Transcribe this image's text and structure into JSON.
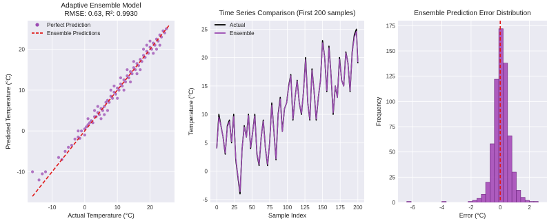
{
  "chart_data": [
    {
      "type": "scatter",
      "title": "Adaptive Ensemble Model",
      "subtitle": "RMSE: 0.63, R²: 0.9930",
      "xlabel": "Actual Temperature (°C)",
      "ylabel": "Predicted Temperature (°C)",
      "xlim": [
        -17.5,
        27.5
      ],
      "ylim": [
        -17.5,
        27
      ],
      "xticks": [
        -10,
        0,
        10,
        20
      ],
      "yticks": [
        -10,
        0,
        10,
        20
      ],
      "legend": {
        "position": "top-left",
        "entries": [
          {
            "label": "Perfect Prediction",
            "color": "#9b4bb2",
            "kind": "marker"
          },
          {
            "label": "Ensemble Predictions",
            "color": "#e01a1a",
            "kind": "dash"
          }
        ]
      },
      "series": [
        {
          "kind": "scatter",
          "color": "#9b4bb2",
          "points": [
            [
              -16,
              -10
            ],
            [
              -13,
              -10.5
            ],
            [
              -12,
              -10
            ],
            [
              -14,
              -12
            ],
            [
              -8,
              -6.5
            ],
            [
              -7,
              -7
            ],
            [
              -6,
              -5
            ],
            [
              -5,
              -4
            ],
            [
              -4,
              -3.5
            ],
            [
              -3,
              -2
            ],
            [
              -2,
              -1.5
            ],
            [
              -1.5,
              -1.8
            ],
            [
              -1,
              0
            ],
            [
              0,
              0.5
            ],
            [
              0.5,
              1
            ],
            [
              1,
              1.5
            ],
            [
              1.5,
              2
            ],
            [
              2,
              2.5
            ],
            [
              2.5,
              2
            ],
            [
              3,
              3.5
            ],
            [
              3.5,
              3.5
            ],
            [
              4,
              4.5
            ],
            [
              4.5,
              4
            ],
            [
              5,
              5.5
            ],
            [
              5.5,
              5
            ],
            [
              6,
              6
            ],
            [
              6.5,
              7
            ],
            [
              7,
              7.5
            ],
            [
              7.5,
              7
            ],
            [
              8,
              8.5
            ],
            [
              8.5,
              8
            ],
            [
              9,
              9.5
            ],
            [
              9.5,
              9
            ],
            [
              10,
              10.5
            ],
            [
              10.5,
              10
            ],
            [
              11,
              11.5
            ],
            [
              11.5,
              11
            ],
            [
              12,
              12.5
            ],
            [
              12.5,
              12
            ],
            [
              13,
              13.5
            ],
            [
              13.5,
              13
            ],
            [
              14,
              14.5
            ],
            [
              14.5,
              14
            ],
            [
              15,
              15.5
            ],
            [
              15.5,
              15
            ],
            [
              16,
              16.5
            ],
            [
              16.5,
              16
            ],
            [
              17,
              17.5
            ],
            [
              17.5,
              17
            ],
            [
              18,
              18.5
            ],
            [
              18.5,
              18
            ],
            [
              19,
              19.5
            ],
            [
              19.5,
              19
            ],
            [
              20,
              20.5
            ],
            [
              20.5,
              20
            ],
            [
              21,
              21.5
            ],
            [
              21.5,
              21
            ],
            [
              22,
              22.5
            ],
            [
              22.5,
              22
            ],
            [
              23,
              23.5
            ],
            [
              23.5,
              23
            ],
            [
              24,
              24.5
            ],
            [
              24.5,
              24
            ],
            [
              25,
              25
            ],
            [
              3,
              5
            ],
            [
              6,
              4
            ],
            [
              9,
              11
            ],
            [
              12,
              10
            ],
            [
              15,
              17
            ],
            [
              17,
              15
            ],
            [
              20,
              22
            ],
            [
              22,
              20
            ],
            [
              1,
              3
            ],
            [
              5,
              3
            ],
            [
              8,
              10
            ],
            [
              10,
              8
            ],
            [
              13,
              15
            ],
            [
              16,
              14
            ],
            [
              19,
              21
            ],
            [
              21,
              19
            ],
            [
              -2,
              0
            ],
            [
              0,
              -1
            ],
            [
              4,
              6
            ],
            [
              7,
              5
            ],
            [
              11,
              13
            ],
            [
              14,
              12
            ],
            [
              18,
              20
            ],
            [
              23,
              21
            ]
          ]
        },
        {
          "kind": "line",
          "color": "#e01a1a",
          "dashed": true,
          "points": [
            [
              -16,
              -16
            ],
            [
              26,
              26
            ]
          ]
        }
      ]
    },
    {
      "type": "line",
      "title": "Time Series Comparison (First 200 samples)",
      "xlabel": "Sample Index",
      "ylabel": "Temperature (°C)",
      "xlim": [
        -9,
        209
      ],
      "ylim": [
        -5.5,
        26.5
      ],
      "xticks": [
        0,
        25,
        50,
        75,
        100,
        125,
        150,
        175,
        200
      ],
      "yticks": [
        -5,
        0,
        5,
        10,
        15,
        20,
        25
      ],
      "legend": {
        "position": "top-left",
        "entries": [
          {
            "label": "Actual",
            "color": "#000000",
            "kind": "line"
          },
          {
            "label": "Ensemble",
            "color": "#9b4bb2",
            "kind": "line"
          }
        ]
      },
      "series": [
        {
          "name": "Actual",
          "color": "#000000",
          "points": [
            [
              0,
              4
            ],
            [
              3,
              10
            ],
            [
              6,
              8
            ],
            [
              9,
              6
            ],
            [
              12,
              3
            ],
            [
              15,
              8
            ],
            [
              18,
              9
            ],
            [
              21,
              5
            ],
            [
              24,
              10
            ],
            [
              27,
              2
            ],
            [
              30,
              -1
            ],
            [
              33,
              -4
            ],
            [
              36,
              4
            ],
            [
              39,
              8
            ],
            [
              42,
              6
            ],
            [
              45,
              10
            ],
            [
              48,
              4
            ],
            [
              51,
              7
            ],
            [
              54,
              10
            ],
            [
              57,
              3
            ],
            [
              60,
              1
            ],
            [
              63,
              6
            ],
            [
              66,
              9
            ],
            [
              69,
              4
            ],
            [
              72,
              1
            ],
            [
              75,
              5
            ],
            [
              78,
              12
            ],
            [
              81,
              7
            ],
            [
              84,
              2
            ],
            [
              87,
              10
            ],
            [
              90,
              13
            ],
            [
              93,
              7
            ],
            [
              96,
              11
            ],
            [
              99,
              12
            ],
            [
              102,
              15
            ],
            [
              105,
              17
            ],
            [
              108,
              9
            ],
            [
              111,
              13
            ],
            [
              114,
              16
            ],
            [
              117,
              12
            ],
            [
              120,
              10
            ],
            [
              123,
              14
            ],
            [
              126,
              20
            ],
            [
              129,
              12
            ],
            [
              132,
              9
            ],
            [
              135,
              18
            ],
            [
              138,
              14
            ],
            [
              141,
              9
            ],
            [
              144,
              13
            ],
            [
              147,
              16
            ],
            [
              150,
              23
            ],
            [
              153,
              20
            ],
            [
              156,
              14
            ],
            [
              159,
              22
            ],
            [
              162,
              17
            ],
            [
              165,
              10
            ],
            [
              168,
              15
            ],
            [
              171,
              13
            ],
            [
              174,
              20
            ],
            [
              177,
              16
            ],
            [
              180,
              15
            ],
            [
              183,
              21
            ],
            [
              186,
              19
            ],
            [
              189,
              14
            ],
            [
              192,
              21
            ],
            [
              195,
              24
            ],
            [
              198,
              25
            ],
            [
              200,
              19
            ]
          ]
        },
        {
          "name": "Ensemble",
          "color": "#9b4bb2",
          "points": [
            [
              0,
              4
            ],
            [
              3,
              9.5
            ],
            [
              6,
              8
            ],
            [
              9,
              6
            ],
            [
              12,
              3.2
            ],
            [
              15,
              7.8
            ],
            [
              18,
              8.7
            ],
            [
              21,
              5.2
            ],
            [
              24,
              9.6
            ],
            [
              27,
              2.3
            ],
            [
              30,
              -0.8
            ],
            [
              33,
              -3.6
            ],
            [
              36,
              4
            ],
            [
              39,
              7.8
            ],
            [
              42,
              6
            ],
            [
              45,
              9.8
            ],
            [
              48,
              4.2
            ],
            [
              51,
              7
            ],
            [
              54,
              9.7
            ],
            [
              57,
              3.2
            ],
            [
              60,
              1.2
            ],
            [
              63,
              6
            ],
            [
              66,
              8.8
            ],
            [
              69,
              4
            ],
            [
              72,
              1.2
            ],
            [
              75,
              5
            ],
            [
              78,
              11.6
            ],
            [
              81,
              7
            ],
            [
              84,
              2.2
            ],
            [
              87,
              9.8
            ],
            [
              90,
              12.7
            ],
            [
              93,
              7
            ],
            [
              96,
              11
            ],
            [
              99,
              12
            ],
            [
              102,
              14.8
            ],
            [
              105,
              16.8
            ],
            [
              108,
              9.2
            ],
            [
              111,
              13
            ],
            [
              114,
              15.8
            ],
            [
              117,
              12
            ],
            [
              120,
              10.2
            ],
            [
              123,
              14
            ],
            [
              126,
              19.6
            ],
            [
              129,
              12
            ],
            [
              132,
              9.2
            ],
            [
              135,
              17.7
            ],
            [
              138,
              14
            ],
            [
              141,
              9.2
            ],
            [
              144,
              13
            ],
            [
              147,
              16
            ],
            [
              150,
              22.6
            ],
            [
              153,
              20
            ],
            [
              156,
              14.2
            ],
            [
              159,
              21.7
            ],
            [
              162,
              17
            ],
            [
              165,
              10.3
            ],
            [
              168,
              15
            ],
            [
              171,
              13
            ],
            [
              174,
              19.7
            ],
            [
              177,
              16
            ],
            [
              180,
              15
            ],
            [
              183,
              20.8
            ],
            [
              186,
              19
            ],
            [
              189,
              14.2
            ],
            [
              192,
              20.8
            ],
            [
              195,
              23.6
            ],
            [
              198,
              24.6
            ],
            [
              200,
              19.2
            ]
          ]
        }
      ]
    },
    {
      "type": "bar",
      "title": "Ensemble Prediction Error Distribution",
      "xlabel": "Error (°C)",
      "ylabel": "Frequency",
      "xlim": [
        -7,
        3.2
      ],
      "ylim": [
        0,
        180
      ],
      "xticks": [
        -6,
        -4,
        -2,
        0,
        2
      ],
      "yticks": [
        0,
        25,
        50,
        75,
        100,
        125,
        150,
        175
      ],
      "bin_edges": [
        -6.4,
        -6.1,
        -5.8,
        -5.5,
        -5.2,
        -4.9,
        -4.6,
        -4.3,
        -4.0,
        -3.7,
        -3.4,
        -3.1,
        -2.8,
        -2.5,
        -2.2,
        -1.9,
        -1.6,
        -1.3,
        -1.0,
        -0.7,
        -0.4,
        -0.1,
        0.2,
        0.5,
        0.8,
        1.1,
        1.4,
        1.7,
        2.0,
        2.3,
        2.6
      ],
      "counts": [
        1,
        0,
        0,
        0,
        0,
        0,
        0,
        0,
        1,
        0,
        0,
        0,
        0,
        0,
        1,
        2,
        4,
        8,
        20,
        58,
        122,
        172,
        138,
        66,
        30,
        12,
        5,
        2,
        1,
        1
      ],
      "bar_color": "#a64bb8",
      "bar_edge": "#6e2a80",
      "vline": {
        "x": 0,
        "color": "#e01a1a",
        "dashed": true
      }
    }
  ]
}
